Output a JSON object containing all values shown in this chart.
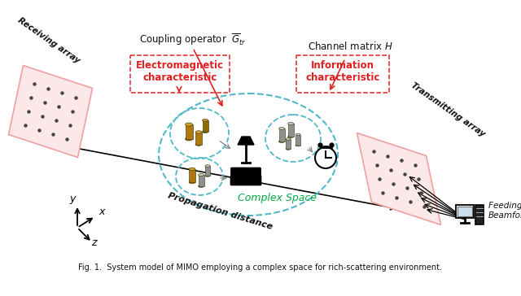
{
  "bg_color": "#ffffff",
  "pink_fill": "#fce8e8",
  "pink_edge": "#f0a0a0",
  "teal_color": "#50b8c8",
  "red_color": "#e02020",
  "green_color": "#00aa44",
  "black_color": "#111111",
  "gold_dark": "#b08010",
  "gold_light": "#d4a828",
  "gray_cyl": "#b0b0b0",
  "gray_cyl_dark": "#888888",
  "receiving_label": "Receiving array",
  "transmitting_label": "Transmitting array",
  "coupling_label": "Coupling operator  $\\mathit{\\overline{G}}_{tr}$",
  "channel_label": "Channel matrix $\\mathit{H}$",
  "em_label": "Electromagnetic\ncharacteristic",
  "info_label": "Information\ncharacteristic",
  "prop_label": "Propagation distance",
  "complex_label": "Complex Space",
  "feeding_label": "Feeding &\nBeamforming",
  "caption": "Fig. 1.  System model of MIMO employing a complex space for rich-scattering environment."
}
